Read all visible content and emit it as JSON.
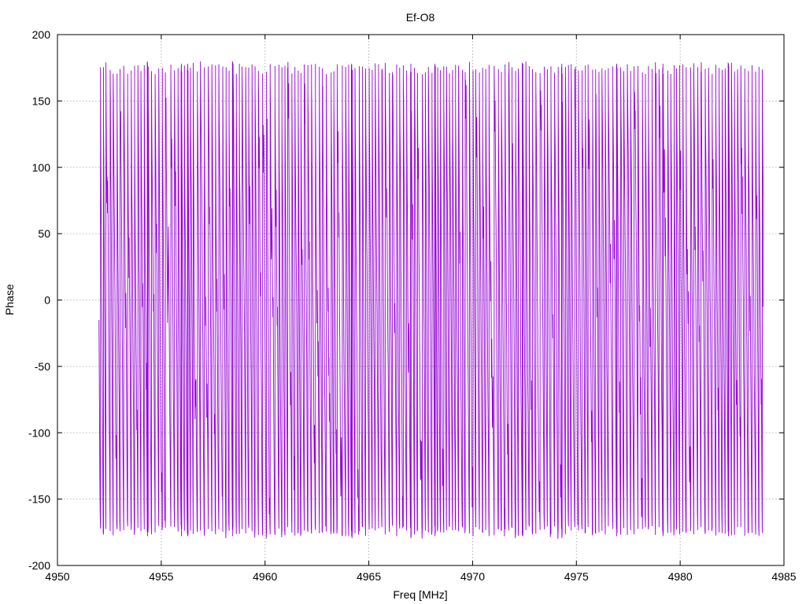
{
  "chart_data": {
    "type": "line",
    "title": "Ef-O8",
    "xlabel": "Freq [MHz]",
    "ylabel": "Phase",
    "xlim": [
      4950,
      4985
    ],
    "ylim": [
      -200,
      200
    ],
    "xticks": [
      4950,
      4955,
      4960,
      4965,
      4970,
      4975,
      4980,
      4985
    ],
    "yticks": [
      -200,
      -150,
      -100,
      -50,
      0,
      50,
      100,
      150,
      200
    ],
    "grid": true,
    "legend": "none",
    "series": [
      {
        "color": "#9400d3",
        "x_start": 4952,
        "x_end": 4984,
        "phase_wrap_period_mhz": 0.148,
        "phase_start": -15,
        "phase_end": -5,
        "y_range": [
          -180,
          180
        ]
      }
    ]
  }
}
